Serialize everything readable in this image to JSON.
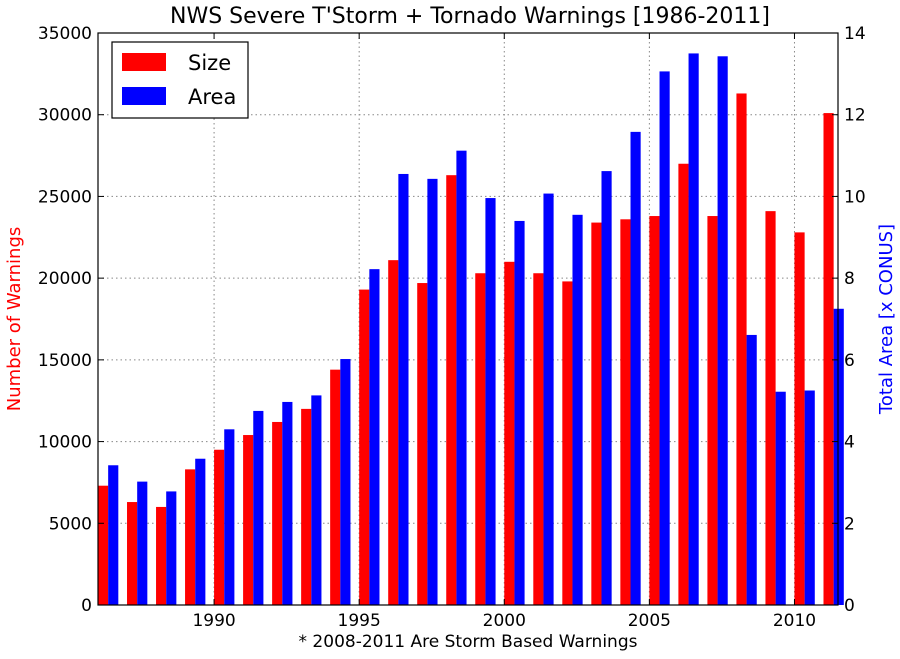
{
  "chart_data": {
    "type": "bar",
    "title": "NWS Severe T'Storm + Tornado Warnings [1986-2011]",
    "xlabel": "* 2008-2011 Are Storm Based Warnings",
    "ylabel_left": "Number of Warnings",
    "ylabel_right": "Total Area [x CONUS]",
    "left_color": "#ff0000",
    "right_color": "#0000ff",
    "x": [
      1986,
      1987,
      1988,
      1989,
      1990,
      1991,
      1992,
      1993,
      1994,
      1995,
      1996,
      1997,
      1998,
      1999,
      2000,
      2001,
      2002,
      2003,
      2004,
      2005,
      2006,
      2007,
      2008,
      2009,
      2010,
      2011
    ],
    "x_ticks": [
      1990,
      1995,
      2000,
      2005,
      2010
    ],
    "ylim_left": [
      0,
      35000
    ],
    "yticks_left": [
      0,
      5000,
      10000,
      15000,
      20000,
      25000,
      30000,
      35000
    ],
    "ylim_right": [
      0,
      14
    ],
    "yticks_right": [
      0,
      2,
      4,
      6,
      8,
      10,
      12,
      14
    ],
    "grid": true,
    "legend_position": "top-left",
    "series": [
      {
        "name": "Size",
        "axis": "left",
        "color": "#ff0000",
        "values": [
          7300,
          6300,
          6000,
          8300,
          9500,
          10400,
          11200,
          12000,
          14400,
          19300,
          21100,
          19700,
          26300,
          20300,
          21000,
          20300,
          19800,
          23400,
          23600,
          23800,
          27000,
          23800,
          31300,
          24100,
          22800,
          30100
        ]
      },
      {
        "name": "Area",
        "axis": "right",
        "color": "#0000ff",
        "values": [
          3.42,
          3.02,
          2.78,
          3.58,
          4.3,
          4.75,
          4.97,
          5.13,
          6.02,
          8.22,
          10.55,
          10.43,
          11.12,
          9.96,
          9.4,
          10.07,
          9.55,
          10.62,
          11.58,
          13.06,
          13.5,
          13.43,
          6.61,
          5.22,
          5.25,
          7.25
        ]
      }
    ]
  }
}
